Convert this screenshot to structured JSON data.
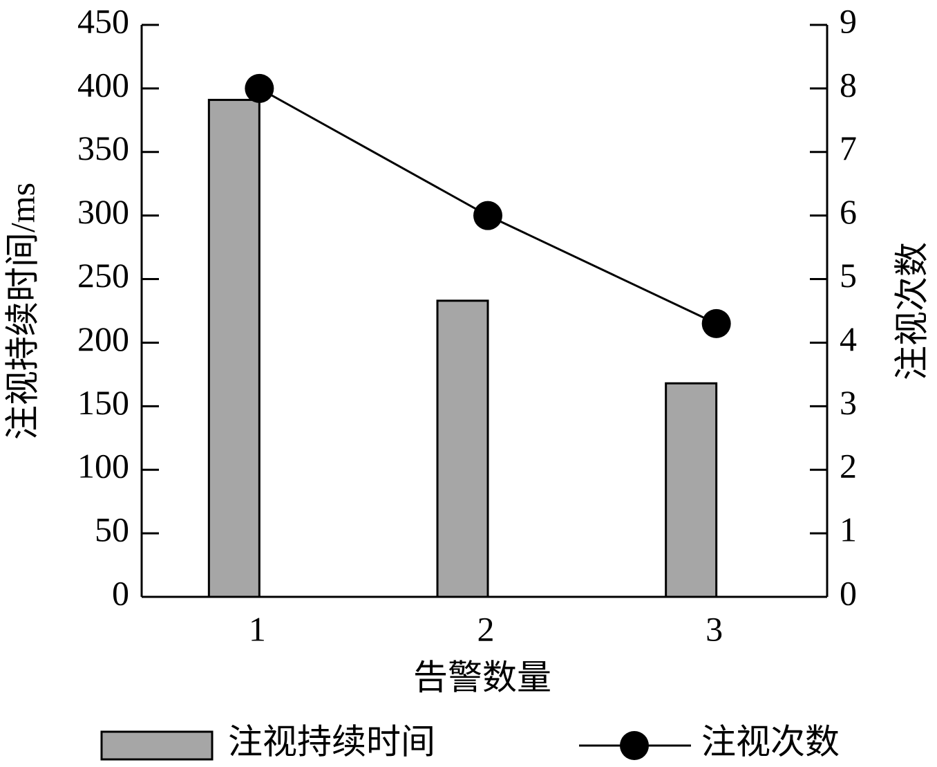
{
  "chart_data": {
    "type": "bar",
    "categories": [
      "1",
      "2",
      "3"
    ],
    "x_label": "告警数量",
    "y_label": "注视持续时间/ms",
    "y2_label": "注视次数",
    "series": [
      {
        "name": "注视持续时间",
        "type": "bar",
        "color": "#a6a6a6",
        "values": [
          391,
          233,
          168
        ]
      },
      {
        "name": "注视次数",
        "type": "line",
        "axis": "y2",
        "color": "#000000",
        "values": [
          8,
          6,
          4.3
        ]
      }
    ],
    "ylim": [
      0,
      450
    ],
    "yticks": [
      0,
      50,
      100,
      150,
      200,
      250,
      300,
      350,
      400,
      450
    ],
    "y2lim": [
      0,
      9
    ],
    "y2ticks": [
      0,
      1,
      2,
      3,
      4,
      5,
      6,
      7,
      8,
      9
    ]
  }
}
